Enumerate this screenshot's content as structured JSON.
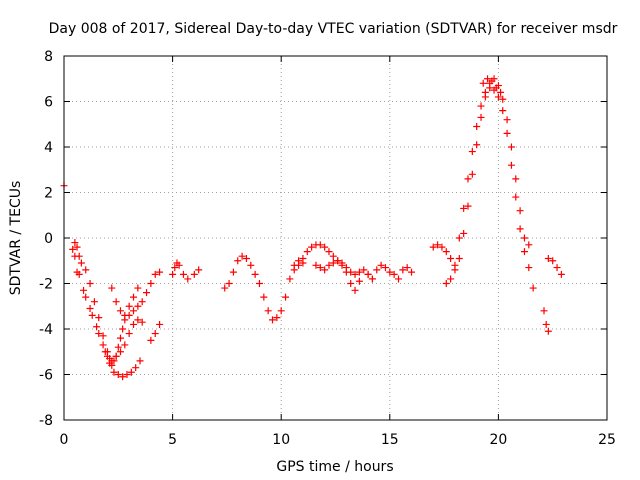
{
  "chart_data": {
    "type": "scatter",
    "title": "Day 008 of 2017, Sidereal Day-to-day VTEC variation (SDTVAR) for receiver msdr",
    "xlabel": "GPS time / hours",
    "ylabel": "SDTVAR / TECUs",
    "xlim": [
      0,
      25
    ],
    "ylim": [
      -8,
      8
    ],
    "xticks": [
      0,
      5,
      10,
      15,
      20,
      25
    ],
    "yticks": [
      -8,
      -6,
      -4,
      -2,
      0,
      2,
      4,
      6,
      8
    ],
    "grid": true,
    "marker": "+",
    "colors": {
      "series": "#ff0000",
      "axis": "#000000",
      "grid": "#a0a0a0"
    },
    "series": [
      {
        "name": "msdr",
        "x": [
          0.0,
          0.4,
          0.5,
          0.6,
          0.7,
          0.8,
          1.0,
          1.2,
          1.4,
          1.6,
          1.8,
          2.0,
          2.1,
          2.2,
          2.3,
          2.4,
          2.5,
          2.6,
          2.7,
          2.8,
          3.0,
          3.2,
          3.4,
          3.6,
          3.8,
          4.0,
          4.2,
          4.4,
          0.5,
          0.7,
          1.0,
          1.3,
          1.6,
          1.9,
          2.1,
          2.3,
          2.5,
          2.7,
          2.9,
          3.1,
          3.3,
          3.5,
          0.6,
          0.9,
          1.2,
          1.5,
          1.8,
          2.0,
          2.2,
          2.4,
          2.6,
          2.8,
          3.0,
          3.2,
          3.4,
          3.6,
          2.2,
          2.4,
          2.6,
          2.8,
          3.0,
          3.2,
          3.4,
          4.0,
          4.2,
          4.4,
          5.0,
          5.1,
          5.2,
          5.3,
          5.5,
          5.7,
          6.0,
          6.2,
          7.4,
          7.6,
          7.8,
          8.0,
          8.2,
          8.4,
          8.6,
          8.8,
          9.0,
          9.2,
          9.4,
          9.6,
          9.8,
          10.0,
          10.2,
          10.4,
          10.6,
          10.8,
          11.0,
          10.6,
          10.8,
          11.0,
          11.2,
          11.4,
          11.6,
          11.8,
          12.0,
          12.2,
          12.4,
          12.6,
          12.8,
          13.0,
          11.6,
          11.8,
          12.0,
          12.2,
          12.4,
          12.6,
          12.8,
          13.0,
          13.2,
          13.4,
          13.6,
          13.8,
          14.0,
          14.2,
          14.4,
          14.6,
          14.8,
          15.0,
          15.2,
          15.4,
          15.6,
          15.8,
          16.0,
          13.2,
          13.4,
          13.6,
          14.0,
          14.2,
          17.0,
          17.2,
          17.4,
          17.6,
          17.8,
          18.0,
          18.2,
          18.4,
          18.6,
          18.8,
          19.0,
          19.2,
          19.4,
          19.6,
          19.8,
          20.0,
          20.2,
          20.4,
          20.6,
          20.8,
          21.0,
          21.2,
          21.4,
          21.6,
          17.6,
          17.8,
          18.0,
          18.2,
          18.4,
          18.6,
          18.8,
          19.0,
          19.2,
          19.4,
          19.6,
          19.8,
          20.0,
          20.2,
          20.4,
          20.6,
          20.8,
          21.0,
          21.2,
          21.4,
          19.3,
          19.5,
          19.7,
          19.9,
          20.1,
          22.1,
          22.2,
          22.3,
          22.3,
          22.5,
          22.7,
          22.9
        ],
        "y": [
          2.3,
          -0.5,
          -0.2,
          -0.4,
          -0.8,
          -1.1,
          -1.4,
          -2.0,
          -2.8,
          -3.5,
          -4.3,
          -5.0,
          -5.3,
          -5.6,
          -5.4,
          -5.2,
          -4.8,
          -4.4,
          -4.0,
          -3.6,
          -3.4,
          -3.2,
          -3.0,
          -2.8,
          -2.4,
          -2.0,
          -1.6,
          -1.5,
          -0.8,
          -1.6,
          -2.6,
          -3.4,
          -4.2,
          -5.0,
          -5.5,
          -5.9,
          -6.0,
          -6.1,
          -6.0,
          -5.9,
          -5.7,
          -5.4,
          -1.5,
          -2.3,
          -3.1,
          -3.9,
          -4.7,
          -5.2,
          -5.4,
          -5.2,
          -5.0,
          -4.7,
          -4.2,
          -3.8,
          -3.6,
          -3.7,
          -2.2,
          -2.8,
          -3.2,
          -3.4,
          -3.0,
          -2.6,
          -2.2,
          -4.5,
          -4.2,
          -3.8,
          -1.6,
          -1.3,
          -1.1,
          -1.2,
          -1.6,
          -1.8,
          -1.6,
          -1.4,
          -2.2,
          -2.0,
          -1.5,
          -1.0,
          -0.8,
          -0.9,
          -1.2,
          -1.6,
          -2.0,
          -2.6,
          -3.2,
          -3.6,
          -3.5,
          -3.2,
          -2.6,
          -1.8,
          -1.2,
          -1.0,
          -1.1,
          -1.4,
          -1.2,
          -0.9,
          -0.6,
          -0.4,
          -0.3,
          -0.3,
          -0.4,
          -0.6,
          -0.8,
          -1.0,
          -1.2,
          -1.5,
          -1.2,
          -1.3,
          -1.4,
          -1.2,
          -1.1,
          -1.0,
          -1.1,
          -1.3,
          -1.5,
          -1.6,
          -1.5,
          -1.4,
          -1.6,
          -1.8,
          -1.4,
          -1.2,
          -1.3,
          -1.5,
          -1.6,
          -1.8,
          -1.4,
          -1.3,
          -1.5,
          -2.0,
          -2.3,
          -1.9,
          -1.6,
          -1.8,
          -0.4,
          -0.3,
          -0.4,
          -0.6,
          -0.9,
          -1.4,
          -0.9,
          0.2,
          1.4,
          2.8,
          4.1,
          5.3,
          6.2,
          6.6,
          6.5,
          6.2,
          5.6,
          4.6,
          3.2,
          1.8,
          0.4,
          -0.6,
          -1.3,
          -2.2,
          -2.0,
          -1.8,
          -1.2,
          0.0,
          1.3,
          2.6,
          3.8,
          4.9,
          5.8,
          6.4,
          6.8,
          7.0,
          6.7,
          6.1,
          5.2,
          4.0,
          2.6,
          1.2,
          0.0,
          -0.3,
          6.8,
          7.0,
          6.9,
          6.6,
          6.4,
          -3.2,
          -3.8,
          -4.1,
          -0.9,
          -1.0,
          -1.3,
          -1.6
        ]
      }
    ]
  }
}
